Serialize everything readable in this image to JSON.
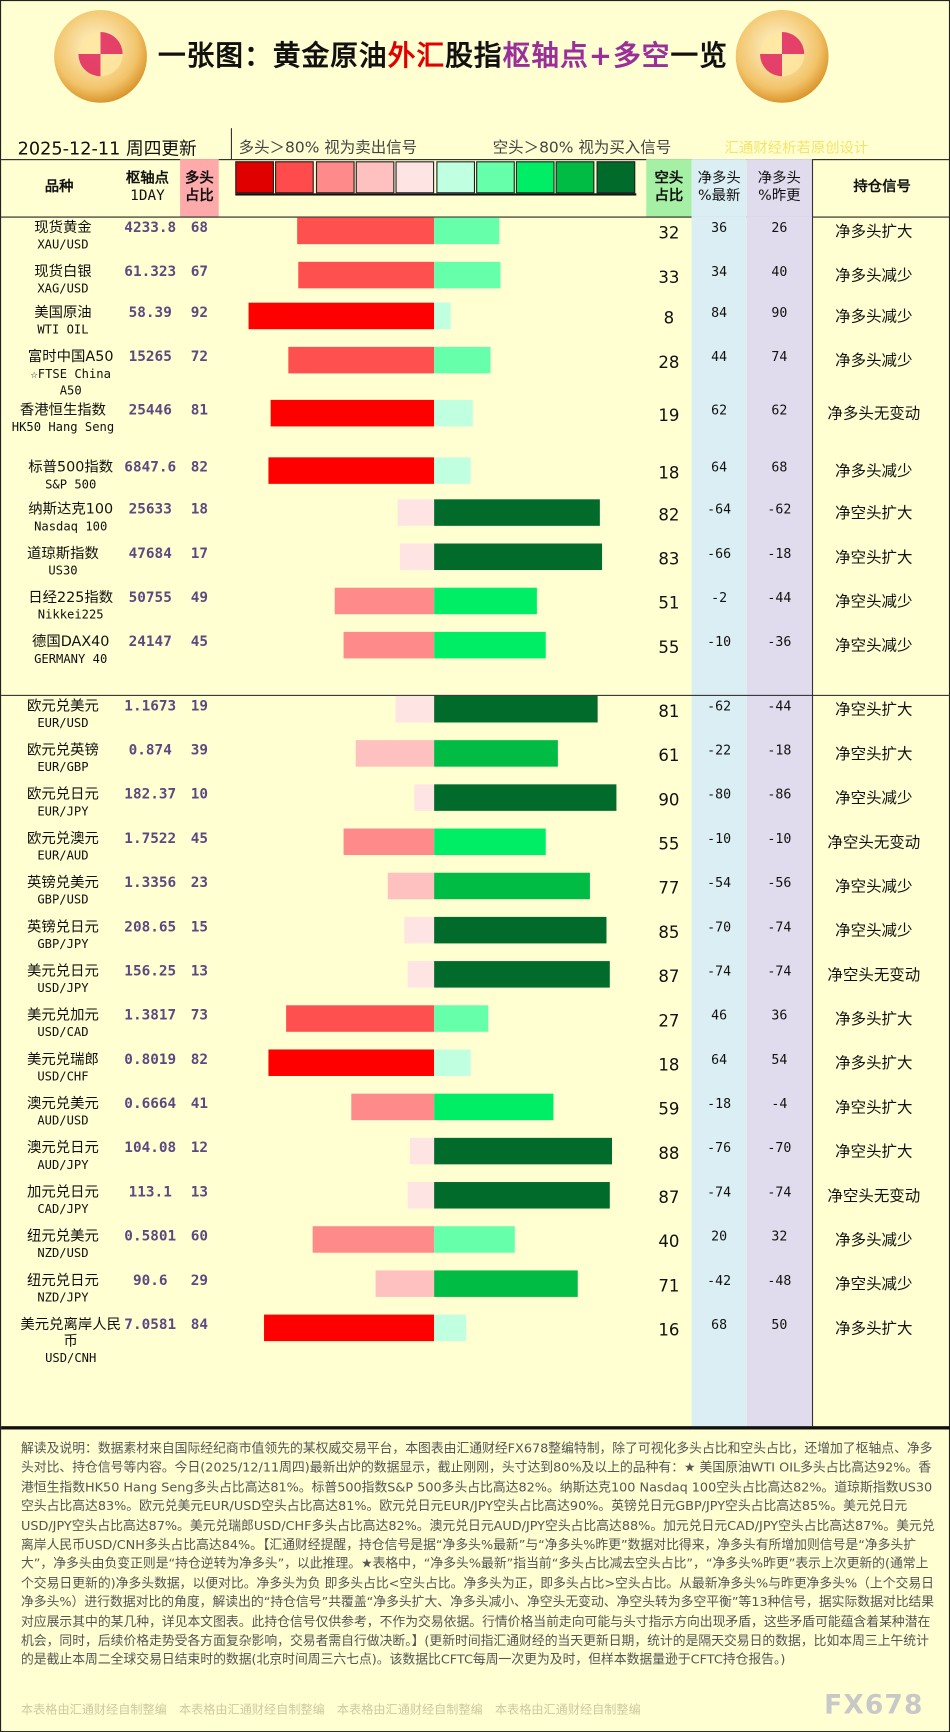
{
  "header": {
    "title_parts": [
      "一张图：黄金原油",
      "外汇",
      "股指",
      "枢轴点+多空",
      "一览"
    ],
    "date": "2025-12-11  周四更新",
    "legend_long": "多头＞80%  视为卖出信号",
    "legend_short": "空头＞80%  视为买入信号",
    "credit": "汇通财经析若原创设计"
  },
  "columns": {
    "name": "品种",
    "pivot": "枢轴点",
    "pivot_sub": "1DAY",
    "long": "多头",
    "long_sub": "占比",
    "short": "空头",
    "short_sub": "占比",
    "net_latest": "净多头",
    "net_latest_sub": "%最新",
    "net_prev": "净多头",
    "net_prev_sub": "%昨更",
    "signal": "持仓信号"
  },
  "scale_colors": [
    "#e00000",
    "#ff4b4b",
    "#ff8a8a",
    "#ffc0c0",
    "#ffe4e4",
    "#c0ffe0",
    "#66ffaa",
    "#00ee66",
    "#00bb44",
    "#006b2b"
  ],
  "rows": [
    {
      "name": "现货黄金",
      "code": "XAU/USD",
      "pivot": "4233.8",
      "long": 68,
      "short": 32,
      "net": "36",
      "prev": "26",
      "signal": "净多头扩大"
    },
    {
      "name": "现货白银",
      "code": "XAG/USD",
      "pivot": "61.323",
      "long": 67,
      "short": 33,
      "net": "34",
      "prev": "40",
      "signal": "净多头减少"
    },
    {
      "name": "美国原油",
      "code": "WTI OIL",
      "pivot": "58.39",
      "long": 92,
      "short": 8,
      "net": "84",
      "prev": "90",
      "signal": "净多头减少"
    },
    {
      "name": "富时中国A50",
      "code": "☆FTSE China A50",
      "pivot": "15265",
      "long": 72,
      "short": 28,
      "net": "44",
      "prev": "74",
      "signal": "净多头减少"
    },
    {
      "name": "香港恒生指数",
      "code": "HK50 Hang Seng",
      "pivot": "25446",
      "long": 81,
      "short": 19,
      "net": "62",
      "prev": "62",
      "signal": "净多头无变动"
    },
    {
      "name": "标普500指数",
      "code": "S&P 500",
      "pivot": "6847.6",
      "long": 82,
      "short": 18,
      "net": "64",
      "prev": "68",
      "signal": "净多头减少"
    },
    {
      "name": "纳斯达克100",
      "code": "Nasdaq 100",
      "pivot": "25633",
      "long": 18,
      "short": 82,
      "net": "-64",
      "prev": "-62",
      "signal": "净空头扩大"
    },
    {
      "name": "道琼斯指数",
      "code": "US30",
      "pivot": "47684",
      "long": 17,
      "short": 83,
      "net": "-66",
      "prev": "-18",
      "signal": "净空头扩大"
    },
    {
      "name": "日经225指数",
      "code": "Nikkei225",
      "pivot": "50755",
      "long": 49,
      "short": 51,
      "net": "-2",
      "prev": "-44",
      "signal": "净空头减少"
    },
    {
      "name": "德国DAX40",
      "code": "GERMANY 40",
      "pivot": "24147",
      "long": 45,
      "short": 55,
      "net": "-10",
      "prev": "-36",
      "signal": "净空头减少"
    },
    {
      "name": "欧元兑美元",
      "code": "EUR/USD",
      "pivot": "1.1673",
      "long": 19,
      "short": 81,
      "net": "-62",
      "prev": "-44",
      "signal": "净空头扩大"
    },
    {
      "name": "欧元兑英镑",
      "code": "EUR/GBP",
      "pivot": "0.874",
      "long": 39,
      "short": 61,
      "net": "-22",
      "prev": "-18",
      "signal": "净空头扩大"
    },
    {
      "name": "欧元兑日元",
      "code": "EUR/JPY",
      "pivot": "182.37",
      "long": 10,
      "short": 90,
      "net": "-80",
      "prev": "-86",
      "signal": "净空头减少"
    },
    {
      "name": "欧元兑澳元",
      "code": "EUR/AUD",
      "pivot": "1.7522",
      "long": 45,
      "short": 55,
      "net": "-10",
      "prev": "-10",
      "signal": "净空头无变动"
    },
    {
      "name": "英镑兑美元",
      "code": "GBP/USD",
      "pivot": "1.3356",
      "long": 23,
      "short": 77,
      "net": "-54",
      "prev": "-56",
      "signal": "净空头减少"
    },
    {
      "name": "英镑兑日元",
      "code": "GBP/JPY",
      "pivot": "208.65",
      "long": 15,
      "short": 85,
      "net": "-70",
      "prev": "-74",
      "signal": "净空头减少"
    },
    {
      "name": "美元兑日元",
      "code": "USD/JPY",
      "pivot": "156.25",
      "long": 13,
      "short": 87,
      "net": "-74",
      "prev": "-74",
      "signal": "净空头无变动"
    },
    {
      "name": "美元兑加元",
      "code": "USD/CAD",
      "pivot": "1.3817",
      "long": 73,
      "short": 27,
      "net": "46",
      "prev": "36",
      "signal": "净多头扩大"
    },
    {
      "name": "美元兑瑞郎",
      "code": "USD/CHF",
      "pivot": "0.8019",
      "long": 82,
      "short": 18,
      "net": "64",
      "prev": "54",
      "signal": "净多头扩大"
    },
    {
      "name": "澳元兑美元",
      "code": "AUD/USD",
      "pivot": "0.6664",
      "long": 41,
      "short": 59,
      "net": "-18",
      "prev": "-4",
      "signal": "净空头扩大"
    },
    {
      "name": "澳元兑日元",
      "code": "AUD/JPY",
      "pivot": "104.08",
      "long": 12,
      "short": 88,
      "net": "-76",
      "prev": "-70",
      "signal": "净空头扩大"
    },
    {
      "name": "加元兑日元",
      "code": "CAD/JPY",
      "pivot": "113.1",
      "long": 13,
      "short": 87,
      "net": "-74",
      "prev": "-74",
      "signal": "净空头无变动"
    },
    {
      "name": "纽元兑美元",
      "code": "NZD/USD",
      "pivot": "0.5801",
      "long": 60,
      "short": 40,
      "net": "20",
      "prev": "32",
      "signal": "净多头减少"
    },
    {
      "name": "纽元兑日元",
      "code": "NZD/JPY",
      "pivot": "90.6",
      "long": 29,
      "short": 71,
      "net": "-42",
      "prev": "-48",
      "signal": "净空头减少"
    },
    {
      "name": "美元兑离岸人民币",
      "code": "USD/CNH",
      "pivot": "7.0581",
      "long": 84,
      "short": 16,
      "net": "68",
      "prev": "50",
      "signal": "净多头扩大"
    }
  ],
  "footer": {
    "text": "解读及说明：数据素材来自国际经纪商市值领先的某权威交易平台，本图表由汇通财经FX678整编特制，除了可视化多头占比和空头占比，还增加了枢轴点、净多头对比、持仓信号等内容。今日(2025/12/11周四)最新出炉的数据显示，截止刚刚，头寸达到80%及以上的品种有：★ 美国原油WTI OIL多头占比高达92%。香港恒生指数HK50 Hang Seng多头占比高达81%。标普500指数S&P 500多头占比高达82%。纳斯达克100 Nasdaq 100空头占比高达82%。道琼斯指数US30空头占比高达83%。欧元兑美元EUR/USD空头占比高达81%。欧元兑日元EUR/JPY空头占比高达90%。英镑兑日元GBP/JPY空头占比高达85%。美元兑日元USD/JPY空头占比高达87%。美元兑瑞郎USD/CHF多头占比高达82%。澳元兑日元AUD/JPY空头占比高达88%。加元兑日元CAD/JPY空头占比高达87%。美元兑离岸人民币USD/CNH多头占比高达84%。【汇通财经提醒，持仓信号是据“净多头%最新”与“净多头%昨更”数据对比得来，净多头有所增加则信号是“净多头扩大”，净多头由负变正则是“持仓逆转为净多头”，以此推理。★表格中，“净多头%最新”指当前“多头占比减去空头占比”，“净多头%昨更”表示上次更新的(通常上个交易日更新的)净多头数据，以便对比。净多头为负 即多头占比<空头占比。净多头为正，即多头占比>空头占比。从最新净多头%与昨更净多头%（上个交易日净多头%）进行数据对比的角度，解读出的“持仓信号”共覆盖“净多头扩大、净多头减小、净空头无变动、净空头转为多空平衡”等13种信号，据实际数据对比结果对应展示其中的某几种，详见本文图表。此持仓信号仅供参考，不作为交易依据。行情价格当前走向可能与头寸指示方向出现矛盾，这些矛盾可能蕴含着某种潜在机会，同时，后续价格走势受各方面复杂影响，交易者需自行做决断。】(更新时间指汇通财经的当天更新日期，统计的是隔天交易日的数据，比如本周三上午统计的是截止本周二全球交易日结束时的数据(北京时间周三六七点)。该数据比CFTC每周一次更为及时，但样本数据量逊于CFTC持仓报告。)",
    "watermark": "本表格由汇通财经自制整编",
    "brand": "FX678"
  }
}
